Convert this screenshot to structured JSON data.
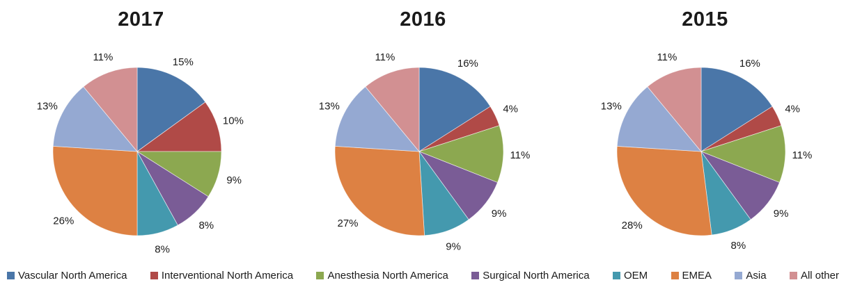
{
  "figure": {
    "background": "#ffffff",
    "text_color": "#1a1a1a"
  },
  "legend": {
    "position": "bottom",
    "items": [
      {
        "label": "Vascular North America",
        "color": "#4A76A8"
      },
      {
        "label": "Interventional North America",
        "color": "#B04A47"
      },
      {
        "label": "Anesthesia North America",
        "color": "#8CA850"
      },
      {
        "label": "Surgical North America",
        "color": "#7A5C96"
      },
      {
        "label": "OEM",
        "color": "#4499AE"
      },
      {
        "label": "EMEA",
        "color": "#DD8143"
      },
      {
        "label": "Asia",
        "color": "#95A9D2"
      },
      {
        "label": "All other",
        "color": "#D29092"
      }
    ]
  },
  "chart_data": [
    {
      "type": "pie",
      "title": "2017",
      "categories": [
        "Vascular North America",
        "Interventional North America",
        "Anesthesia North America",
        "Surgical North America",
        "OEM",
        "EMEA",
        "Asia",
        "All other"
      ],
      "values": [
        15,
        10,
        9,
        8,
        8,
        26,
        13,
        11
      ],
      "labels": [
        "15%",
        "10%",
        "9%",
        "8%",
        "8%",
        "26%",
        "13%",
        "11%"
      ],
      "unit": "%",
      "start_angle_deg": 0,
      "direction": "clockwise",
      "legend_position": "bottom"
    },
    {
      "type": "pie",
      "title": "2016",
      "categories": [
        "Vascular North America",
        "Interventional North America",
        "Anesthesia North America",
        "Surgical North America",
        "OEM",
        "EMEA",
        "Asia",
        "All other"
      ],
      "values": [
        16,
        4,
        11,
        9,
        9,
        27,
        13,
        11
      ],
      "labels": [
        "16%",
        "4%",
        "11%",
        "9%",
        "9%",
        "27%",
        "13%",
        "11%"
      ],
      "unit": "%",
      "start_angle_deg": 0,
      "direction": "clockwise",
      "legend_position": "bottom"
    },
    {
      "type": "pie",
      "title": "2015",
      "categories": [
        "Vascular North America",
        "Interventional North America",
        "Anesthesia North America",
        "Surgical North America",
        "OEM",
        "EMEA",
        "Asia",
        "All other"
      ],
      "values": [
        16,
        4,
        11,
        9,
        8,
        28,
        13,
        11
      ],
      "labels": [
        "16%",
        "4%",
        "11%",
        "9%",
        "8%",
        "28%",
        "13%",
        "11%"
      ],
      "unit": "%",
      "start_angle_deg": 0,
      "direction": "clockwise",
      "legend_position": "bottom"
    }
  ]
}
